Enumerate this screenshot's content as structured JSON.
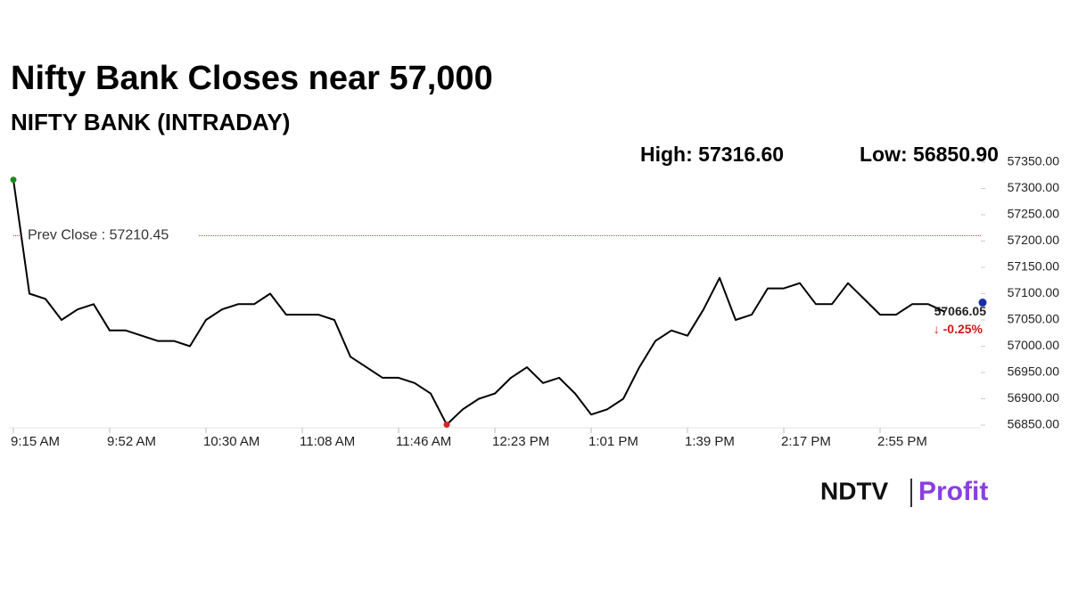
{
  "chart_data": {
    "type": "line",
    "title": "Nifty Bank Closes near 57,000",
    "subtitle": "NIFTY BANK (INTRADAY)",
    "high_label": "High: 57316.60",
    "low_label": "Low: 56850.90",
    "categories": [
      "9:15 AM",
      null,
      null,
      null,
      null,
      null,
      "9:52 AM",
      null,
      null,
      null,
      null,
      null,
      "10:30 AM",
      null,
      null,
      null,
      null,
      null,
      "11:08 AM",
      null,
      null,
      null,
      null,
      null,
      "11:46 AM",
      null,
      null,
      null,
      null,
      null,
      "12:23 PM",
      null,
      null,
      null,
      null,
      null,
      "1:01 PM",
      null,
      null,
      null,
      null,
      null,
      "1:39 PM",
      null,
      null,
      null,
      null,
      null,
      "2:17 PM",
      null,
      null,
      null,
      null,
      null,
      "2:55 PM",
      null,
      null,
      null,
      null
    ],
    "series": [
      {
        "name": "NIFTY BANK",
        "color": "#000000",
        "values": [
          57316.6,
          57100,
          57090,
          57050,
          57070,
          57080,
          57030,
          57030,
          57020,
          57010,
          57010,
          57000,
          57050,
          57070,
          57080,
          57080,
          57100,
          57060,
          57060,
          57060,
          57050,
          56980,
          56960,
          56940,
          56940,
          56930,
          56910,
          56850.9,
          56880,
          56900,
          56910,
          56940,
          56960,
          56930,
          56940,
          56910,
          56870,
          56880,
          56900,
          56960,
          57010,
          57030,
          57020,
          57070,
          57130,
          57050,
          57060,
          57110,
          57110,
          57120,
          57080,
          57080,
          57120,
          57090,
          57060,
          57060,
          57080,
          57080,
          57066.05
        ]
      }
    ],
    "ylim": [
      56850,
      57350
    ],
    "yticks": [
      {
        "value": 56850,
        "label": "56850.00"
      },
      {
        "value": 56900,
        "label": "56900.00"
      },
      {
        "value": 56950,
        "label": "56950.00"
      },
      {
        "value": 57000,
        "label": "57000.00"
      },
      {
        "value": 57050,
        "label": "57050.00"
      },
      {
        "value": 57100,
        "label": "57100.00"
      },
      {
        "value": 57150,
        "label": "57150.00"
      },
      {
        "value": 57200,
        "label": "57200.00"
      },
      {
        "value": 57250,
        "label": "57250.00"
      },
      {
        "value": 57300,
        "label": "57300.00"
      },
      {
        "value": 57350,
        "label": "57350.00"
      }
    ],
    "prev_close": {
      "label": "Prev Close : 57210.45",
      "value": 57210.45,
      "color": "#c0392b"
    },
    "high_index": 0,
    "high_color": "#1a8a1a",
    "low_index": 27,
    "low_color": "#e02020",
    "last_color": "#1a2ea8",
    "last_label": "57066.05",
    "change_label": "↓ -0.25%",
    "change_color": "#d01818",
    "logo": {
      "left": "NDTV",
      "right": "Profit"
    }
  }
}
